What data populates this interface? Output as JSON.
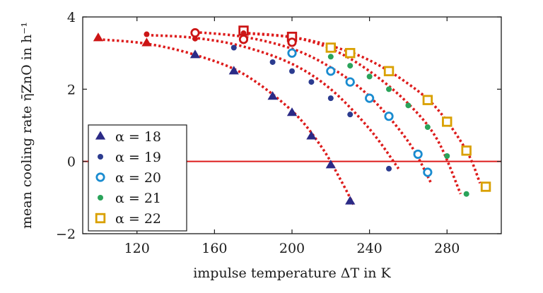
{
  "chart_data": {
    "type": "scatter",
    "xlabel": "impulse temperature ΔT in K",
    "ylabel": "mean cooling rate η̄ZnO in h⁻¹",
    "xlim": [
      92,
      308
    ],
    "ylim": [
      -2,
      4
    ],
    "xticks": [
      120,
      160,
      200,
      240,
      280
    ],
    "yticks": [
      -2,
      0,
      2,
      4
    ],
    "xtick_labels": [
      "120",
      "160",
      "200",
      "240",
      "280"
    ],
    "ytick_labels": [
      "−2",
      "0",
      "2",
      "4"
    ],
    "reference_line": {
      "y": 0,
      "color": "#dd1c1c"
    },
    "legend_position": "bottom-left",
    "series": [
      {
        "name": "α = 18",
        "marker": "triangle",
        "color": "#2b2a86",
        "x": [
          150,
          170,
          190,
          200,
          210,
          220,
          230
        ],
        "y": [
          2.95,
          2.5,
          1.8,
          1.35,
          0.7,
          -0.1,
          -1.1
        ],
        "fit_x": [
          100,
          125,
          150,
          175,
          200,
          215,
          225,
          232
        ],
        "fit_y": [
          3.38,
          3.26,
          2.95,
          2.42,
          1.4,
          0.42,
          -0.5,
          -1.22
        ]
      },
      {
        "name": "α = 19",
        "marker": "dot",
        "color": "#2b3b8f",
        "x": [
          170,
          190,
          200,
          210,
          220,
          230,
          250
        ],
        "y": [
          3.15,
          2.75,
          2.5,
          2.2,
          1.75,
          1.3,
          -0.2
        ],
        "fit_x": [
          125,
          150,
          175,
          200,
          220,
          240,
          255
        ],
        "fit_y": [
          3.5,
          3.42,
          3.18,
          2.7,
          2.0,
          0.9,
          -0.2
        ]
      },
      {
        "name": "α = 20",
        "marker": "ring",
        "color": "#1a8cd0",
        "x": [
          200,
          220,
          230,
          240,
          250,
          265,
          270
        ],
        "y": [
          3.0,
          2.5,
          2.2,
          1.75,
          1.25,
          0.2,
          -0.3
        ],
        "fit_x": [
          150,
          175,
          200,
          220,
          240,
          260,
          272
        ],
        "fit_y": [
          3.58,
          3.45,
          3.12,
          2.6,
          1.8,
          0.55,
          -0.62
        ]
      },
      {
        "name": "α = 21",
        "marker": "dot",
        "color": "#2aa35a",
        "x": [
          220,
          230,
          240,
          250,
          260,
          270,
          280,
          290
        ],
        "y": [
          2.9,
          2.65,
          2.35,
          2.0,
          1.55,
          0.95,
          0.15,
          -0.9
        ],
        "fit_x": [
          175,
          200,
          220,
          240,
          260,
          275,
          287
        ],
        "fit_y": [
          3.56,
          3.44,
          3.12,
          2.5,
          1.6,
          0.6,
          -0.9
        ]
      },
      {
        "name": "α = 22",
        "marker": "square",
        "color": "#d9a000",
        "x": [
          220,
          230,
          250,
          270,
          280,
          290,
          300
        ],
        "y": [
          3.15,
          3.0,
          2.5,
          1.7,
          1.1,
          0.3,
          -0.7
        ],
        "fit_x": [
          175,
          200,
          220,
          240,
          260,
          275,
          290,
          297
        ],
        "fit_y": [
          3.55,
          3.44,
          3.2,
          2.8,
          2.15,
          1.45,
          0.3,
          -0.6
        ]
      }
    ],
    "overlap_points": [
      {
        "x": 100,
        "y": 3.42,
        "marker": "triangle",
        "color": "#cc1515"
      },
      {
        "x": 125,
        "y": 3.28,
        "marker": "triangle",
        "color": "#cc1515"
      },
      {
        "x": 125,
        "y": 3.52,
        "marker": "dot",
        "color": "#cc1515"
      },
      {
        "x": 150,
        "y": 3.56,
        "marker": "ring",
        "color": "#cc1515"
      },
      {
        "x": 150,
        "y": 3.4,
        "marker": "dot",
        "color": "#cc1515"
      },
      {
        "x": 175,
        "y": 3.38,
        "marker": "ring",
        "color": "#cc1515"
      },
      {
        "x": 175,
        "y": 3.62,
        "marker": "square",
        "color": "#cc1515"
      },
      {
        "x": 175,
        "y": 3.55,
        "marker": "dot",
        "color": "#cc1515"
      },
      {
        "x": 200,
        "y": 3.45,
        "marker": "square",
        "color": "#cc1515"
      },
      {
        "x": 200,
        "y": 3.3,
        "marker": "ring",
        "color": "#cc1515"
      }
    ],
    "fit_line_color": "#dd1c1c"
  }
}
